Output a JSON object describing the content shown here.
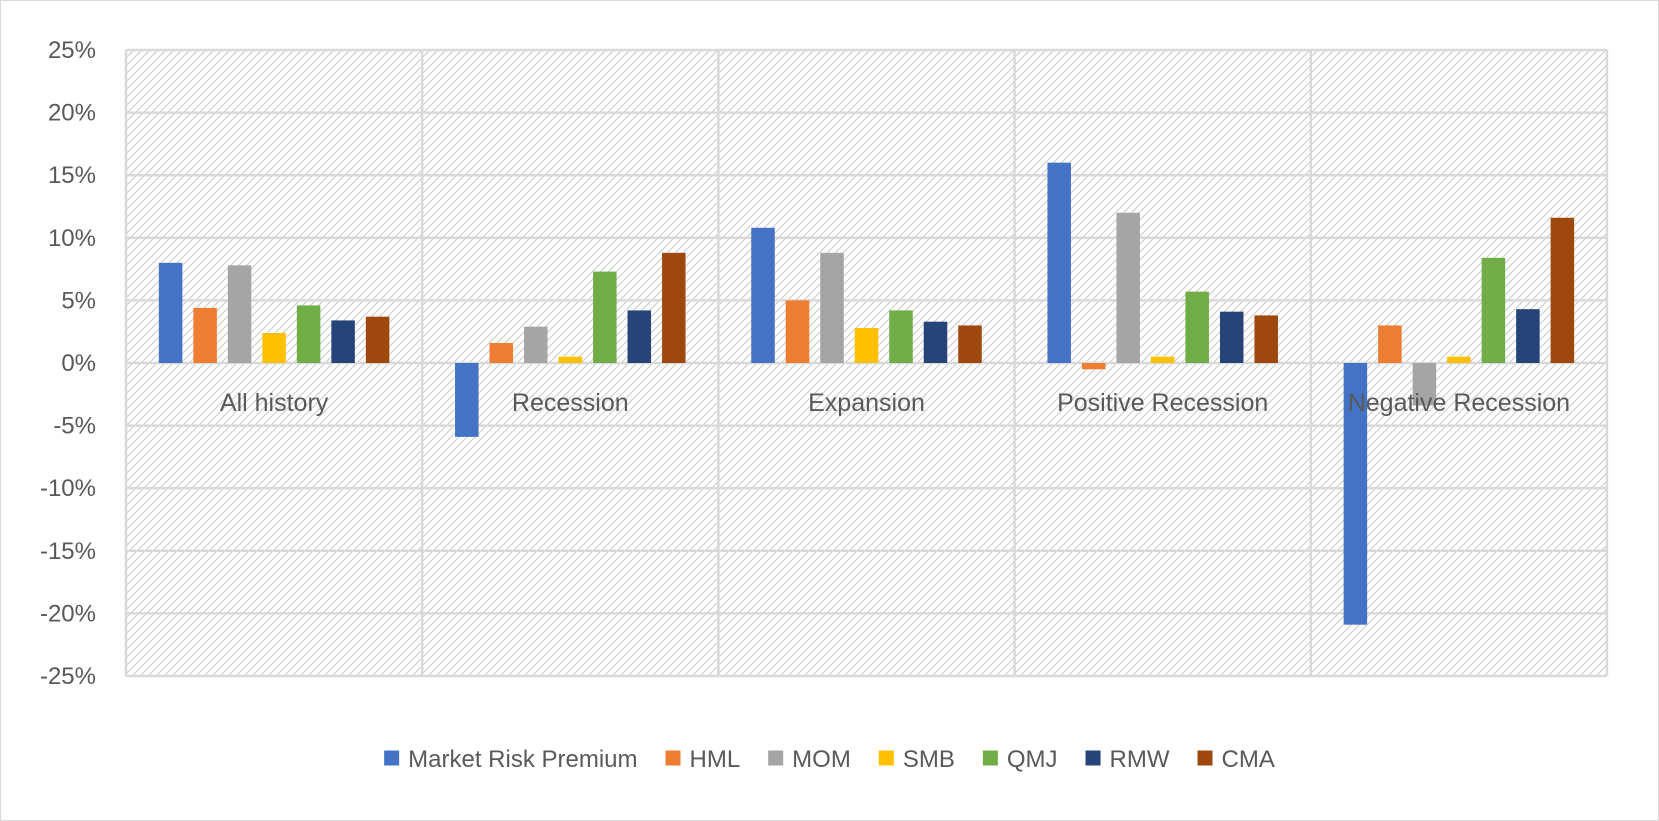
{
  "chart_data": {
    "type": "bar",
    "title": "",
    "xlabel": "",
    "ylabel": "",
    "ylim": [
      -0.25,
      0.25
    ],
    "y_ticks": [
      0.25,
      0.2,
      0.15,
      0.1,
      0.05,
      0,
      -0.05,
      -0.1,
      -0.15,
      -0.2,
      -0.25
    ],
    "y_tick_labels": [
      "25%",
      "20%",
      "15%",
      "10%",
      "5%",
      "0%",
      "-5%",
      "-10%",
      "-15%",
      "-20%",
      "-25%"
    ],
    "categories": [
      "All history",
      "Recession",
      "Expansion",
      "Positive Recession",
      "Negative Recession"
    ],
    "grid": true,
    "legend_position": "bottom",
    "series": [
      {
        "name": "Market Risk Premium",
        "color": "#4472C4",
        "values": [
          0.08,
          -0.059,
          0.108,
          0.16,
          -0.209
        ]
      },
      {
        "name": "HML",
        "color": "#ED7D31",
        "values": [
          0.044,
          0.016,
          0.05,
          -0.005,
          0.03
        ]
      },
      {
        "name": "MOM",
        "color": "#A5A5A5",
        "values": [
          0.078,
          0.029,
          0.088,
          0.12,
          -0.034
        ]
      },
      {
        "name": "SMB",
        "color": "#FFC000",
        "values": [
          0.024,
          0.005,
          0.028,
          0.005,
          0.005
        ]
      },
      {
        "name": "QMJ",
        "color": "#70AD47",
        "values": [
          0.046,
          0.073,
          0.042,
          0.057,
          0.084
        ]
      },
      {
        "name": "RMW",
        "color": "#264478",
        "values": [
          0.034,
          0.042,
          0.033,
          0.041,
          0.043
        ]
      },
      {
        "name": "CMA",
        "color": "#9E480E",
        "values": [
          0.037,
          0.088,
          0.03,
          0.038,
          0.116
        ]
      }
    ]
  }
}
